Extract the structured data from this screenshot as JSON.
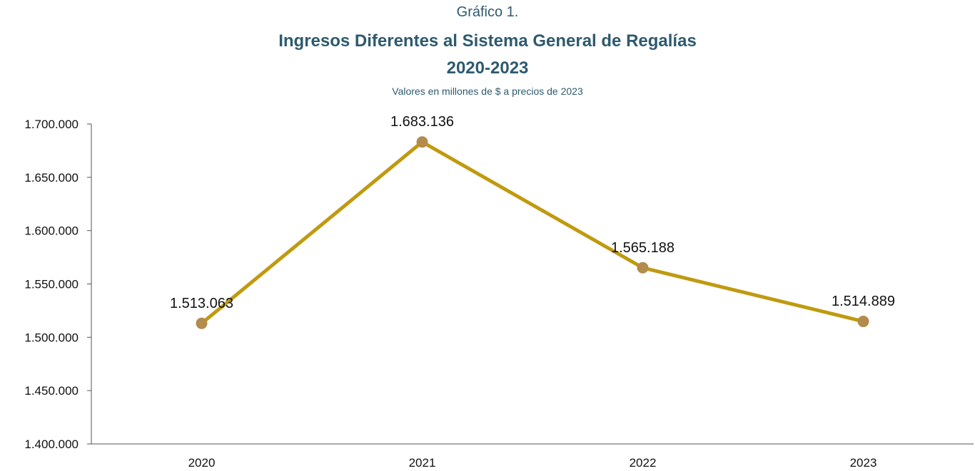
{
  "header": {
    "label": "Gráfico 1.",
    "title": "Ingresos Diferentes al Sistema General de Regalías",
    "period": "2020-2023",
    "subtitle": "Valores en millones de $ a precios de 2023"
  },
  "colors": {
    "title": "#2e5a6e",
    "line": "#c09a10",
    "marker": "#b38b4d",
    "axis": "#555555",
    "text": "#111111"
  },
  "chart_data": {
    "type": "line",
    "title": "Ingresos Diferentes al Sistema General de Regalías",
    "subtitle": "Valores en millones de $ a precios de 2023",
    "categories": [
      "2020",
      "2021",
      "2022",
      "2023"
    ],
    "values": [
      1513063,
      1683136,
      1565188,
      1514889
    ],
    "data_labels": [
      "1.513.063",
      "1.683.136",
      "1.565.188",
      "1.514.889"
    ],
    "ylim": [
      1400000,
      1700000
    ],
    "y_ticks": [
      1400000,
      1450000,
      1500000,
      1550000,
      1600000,
      1650000,
      1700000
    ],
    "y_tick_labels": [
      "1.400.000",
      "1.450.000",
      "1.500.000",
      "1.550.000",
      "1.600.000",
      "1.650.000",
      "1.700.000"
    ],
    "grid": false,
    "legend": "none",
    "xlabel": "",
    "ylabel": ""
  }
}
